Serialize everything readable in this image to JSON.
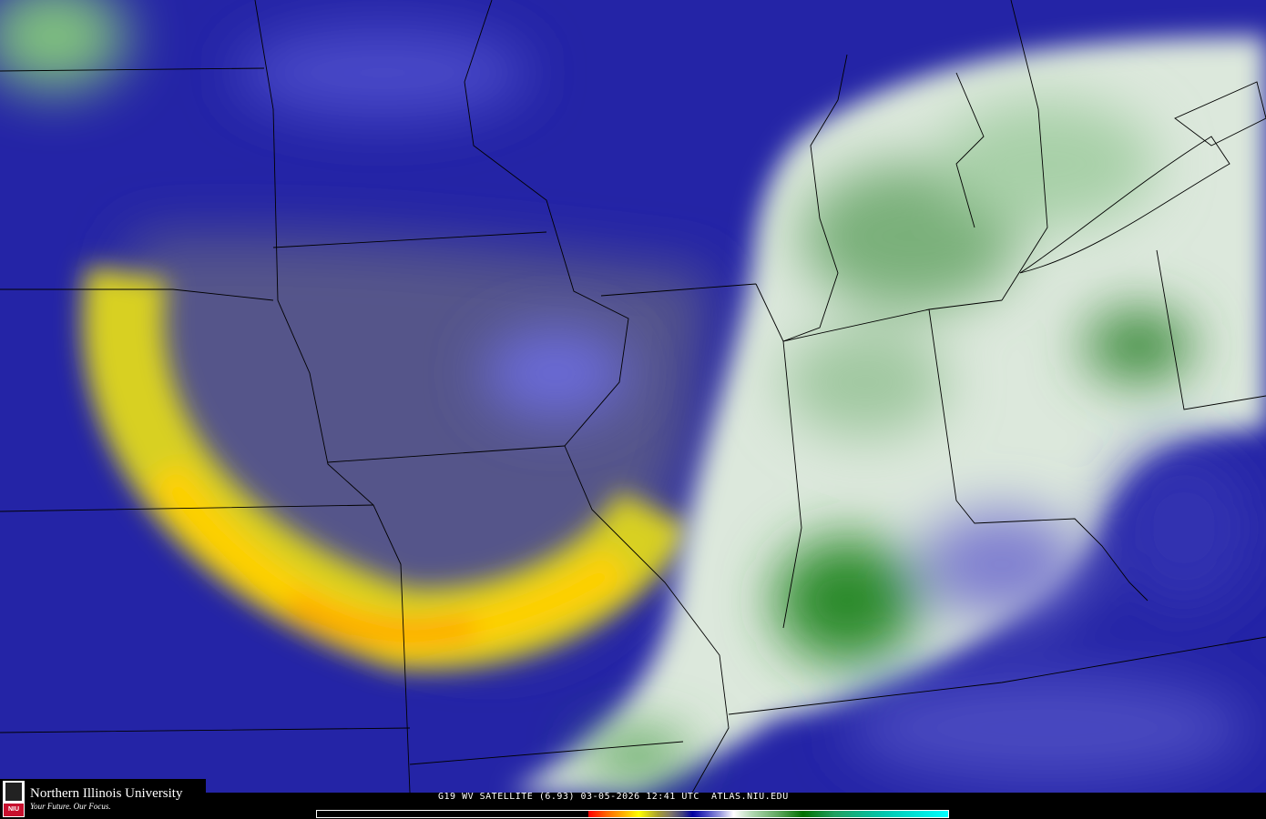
{
  "caption": "G19 WV SATELLITE (6.93) 03-05-2026 12:41 UTC  ATLAS.NIU.EDU",
  "logo": {
    "name": "Northern Illinois University",
    "tagline": "Your Future. Our Focus.",
    "mark": "NIU"
  },
  "colorbar": {
    "colors": [
      "#000000",
      "#ff0000",
      "#ff8000",
      "#ffff00",
      "#808070",
      "#0000a0",
      "#a0a0e0",
      "#ffffff",
      "#60a860",
      "#007000",
      "#00ffff"
    ]
  }
}
